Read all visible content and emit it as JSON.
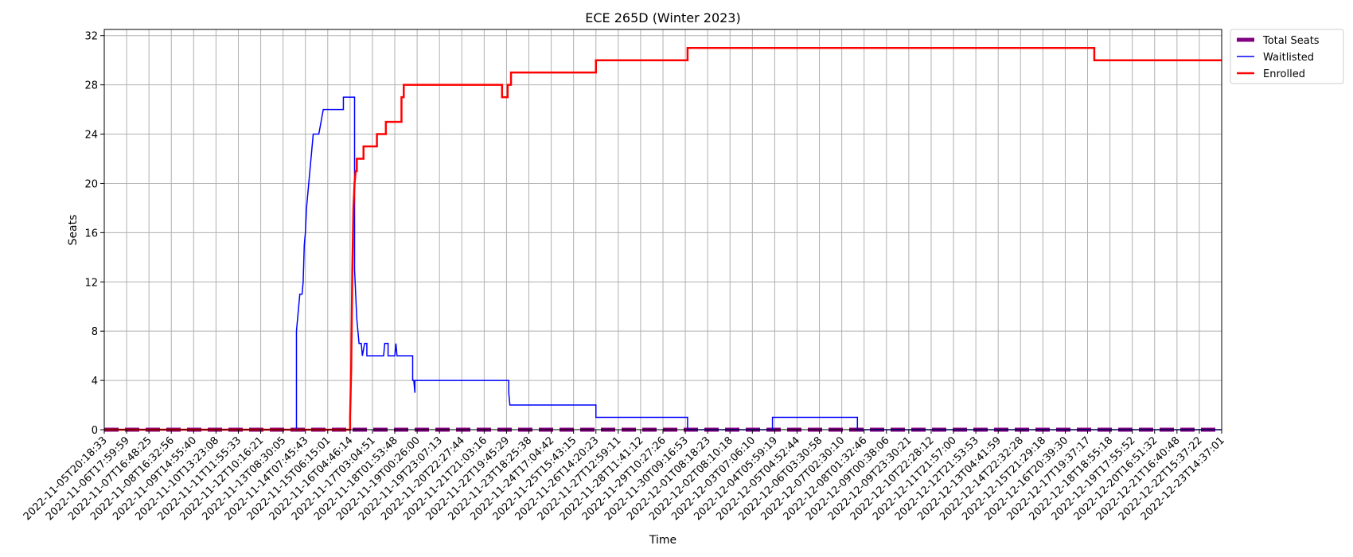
{
  "chart_data": {
    "type": "line",
    "title": "ECE 265D (Winter 2023)",
    "xlabel": "Time",
    "ylabel": "Seats",
    "ylim": [
      0,
      32.5
    ],
    "yticks": [
      0,
      4,
      8,
      12,
      16,
      20,
      24,
      28,
      32
    ],
    "grid": true,
    "legend_position": "outside-top-right",
    "x_categories": [
      "2022-11-05T20:18:33",
      "2022-11-06T17:59:59",
      "2022-11-07T16:48:25",
      "2022-11-08T16:32:56",
      "2022-11-09T14:55:40",
      "2022-11-10T13:23:08",
      "2022-11-11T11:55:33",
      "2022-11-12T10:16:21",
      "2022-11-13T08:30:05",
      "2022-11-14T07:45:43",
      "2022-11-15T06:15:01",
      "2022-11-16T04:46:14",
      "2022-11-17T03:04:51",
      "2022-11-18T01:53:48",
      "2022-11-19T00:26:00",
      "2022-11-19T23:07:13",
      "2022-11-20T22:27:44",
      "2022-11-21T21:03:16",
      "2022-11-22T19:45:29",
      "2022-11-23T18:25:38",
      "2022-11-24T17:04:42",
      "2022-11-25T15:43:15",
      "2022-11-26T14:20:23",
      "2022-11-27T12:59:11",
      "2022-11-28T11:41:12",
      "2022-11-29T10:27:26",
      "2022-11-30T09:16:53",
      "2022-12-01T08:18:23",
      "2022-12-02T08:10:18",
      "2022-12-03T07:06:10",
      "2022-12-04T05:59:19",
      "2022-12-05T04:52:44",
      "2022-12-06T03:30:58",
      "2022-12-07T02:30:10",
      "2022-12-08T01:32:46",
      "2022-12-09T00:38:06",
      "2022-12-09T23:30:21",
      "2022-12-10T22:28:12",
      "2022-12-11T21:57:00",
      "2022-12-12T21:53:53",
      "2022-12-13T04:41:59",
      "2022-12-14T22:32:28",
      "2022-12-15T21:29:18",
      "2022-12-16T20:39:30",
      "2022-12-17T19:37:17",
      "2022-12-18T18:55:18",
      "2022-12-19T17:55:52",
      "2022-12-20T16:51:32",
      "2022-12-21T16:40:48",
      "2022-12-22T15:37:22",
      "2022-12-23T14:37:01"
    ],
    "series": [
      {
        "name": "Total Seats",
        "color": "#800080",
        "style": "dashed",
        "points": [
          [
            0,
            0
          ],
          [
            50,
            0
          ]
        ]
      },
      {
        "name": "Waitlisted",
        "color": "#0000ff",
        "style": "solid",
        "points": [
          [
            0,
            0
          ],
          [
            8.6,
            0
          ],
          [
            8.6,
            8
          ],
          [
            8.65,
            9
          ],
          [
            8.7,
            10
          ],
          [
            8.75,
            11
          ],
          [
            8.85,
            11
          ],
          [
            8.9,
            12
          ],
          [
            8.95,
            15
          ],
          [
            9.0,
            16
          ],
          [
            9.05,
            18
          ],
          [
            9.15,
            20
          ],
          [
            9.25,
            22
          ],
          [
            9.35,
            24
          ],
          [
            9.6,
            24
          ],
          [
            9.7,
            25
          ],
          [
            9.8,
            26
          ],
          [
            10.7,
            26
          ],
          [
            10.7,
            27
          ],
          [
            11.2,
            27
          ],
          [
            11.2,
            13
          ],
          [
            11.25,
            11
          ],
          [
            11.3,
            9
          ],
          [
            11.4,
            7
          ],
          [
            11.5,
            7
          ],
          [
            11.55,
            6
          ],
          [
            11.65,
            7
          ],
          [
            11.75,
            7
          ],
          [
            11.75,
            6
          ],
          [
            12.5,
            6
          ],
          [
            12.55,
            7
          ],
          [
            12.7,
            7
          ],
          [
            12.7,
            6
          ],
          [
            13.0,
            6
          ],
          [
            13.05,
            7
          ],
          [
            13.1,
            6
          ],
          [
            13.8,
            6
          ],
          [
            13.8,
            4
          ],
          [
            13.85,
            4
          ],
          [
            13.9,
            3
          ],
          [
            13.9,
            4
          ],
          [
            18.1,
            4
          ],
          [
            18.1,
            3
          ],
          [
            18.15,
            2
          ],
          [
            22.0,
            2
          ],
          [
            22.0,
            1
          ],
          [
            26.1,
            1
          ],
          [
            26.1,
            0
          ],
          [
            29.9,
            0
          ],
          [
            29.9,
            1
          ],
          [
            33.7,
            1
          ],
          [
            33.7,
            0
          ],
          [
            50,
            0
          ]
        ]
      },
      {
        "name": "Enrolled",
        "color": "#ff0000",
        "style": "solid",
        "points": [
          [
            0,
            0
          ],
          [
            11.0,
            0
          ],
          [
            11.0,
            1
          ],
          [
            11.05,
            5
          ],
          [
            11.1,
            13
          ],
          [
            11.15,
            18
          ],
          [
            11.2,
            20
          ],
          [
            11.25,
            21
          ],
          [
            11.3,
            21
          ],
          [
            11.3,
            22
          ],
          [
            11.6,
            22
          ],
          [
            11.6,
            23
          ],
          [
            12.2,
            23
          ],
          [
            12.2,
            24
          ],
          [
            12.6,
            24
          ],
          [
            12.6,
            25
          ],
          [
            13.3,
            25
          ],
          [
            13.3,
            27
          ],
          [
            13.4,
            27
          ],
          [
            13.4,
            28
          ],
          [
            17.8,
            28
          ],
          [
            17.8,
            27
          ],
          [
            18.05,
            27
          ],
          [
            18.05,
            28
          ],
          [
            18.2,
            28
          ],
          [
            18.2,
            29
          ],
          [
            22.0,
            29
          ],
          [
            22.0,
            30
          ],
          [
            26.1,
            30
          ],
          [
            26.1,
            31
          ],
          [
            44.3,
            31
          ],
          [
            44.3,
            30
          ],
          [
            50,
            30
          ]
        ]
      }
    ]
  }
}
